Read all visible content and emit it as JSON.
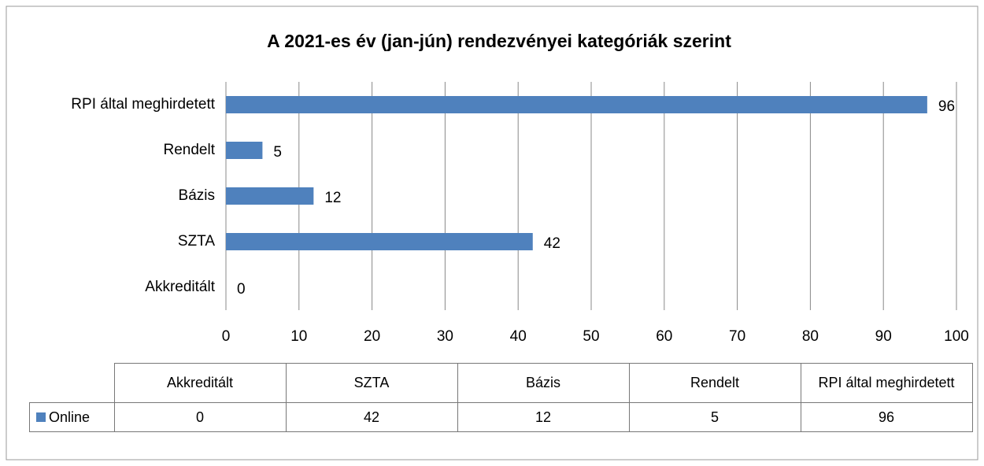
{
  "chart_data": {
    "type": "bar",
    "orientation": "horizontal",
    "title": "A 2021-es év (jan-jún) rendezvényei kategóriák szerint",
    "categories": [
      "Akkreditált",
      "SZTA",
      "Bázis",
      "Rendelt",
      "RPI által meghirdetett"
    ],
    "series": [
      {
        "name": "Online",
        "color": "#4f81bd",
        "values": [
          0,
          42,
          12,
          5,
          96
        ]
      }
    ],
    "xlim": [
      0,
      100
    ],
    "xticks": [
      0,
      10,
      20,
      30,
      40,
      50,
      60,
      70,
      80,
      90,
      100
    ],
    "grid": true,
    "data_table": true
  }
}
